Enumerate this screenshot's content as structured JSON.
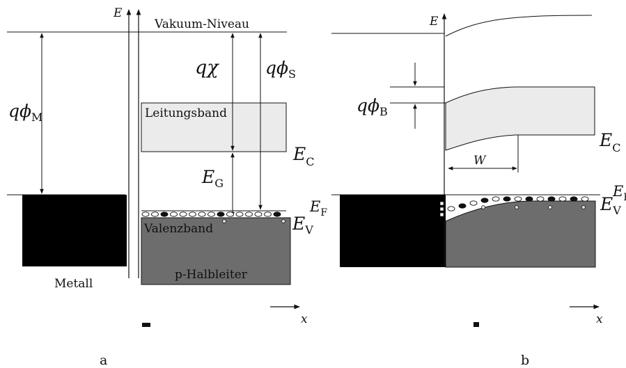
{
  "panel_a": {
    "energy_axis_label": "E",
    "x_axis_label": "x",
    "vacuum_level": "Vakuum-Niveau",
    "work_function_metal": {
      "symbol": "qϕ",
      "sub": "M"
    },
    "electron_affinity": "qχ",
    "work_function_semiconductor": {
      "symbol": "qϕ",
      "sub": "S"
    },
    "conduction_band": "Leitungsband",
    "valence_band": "Valenzband",
    "band_gap": {
      "symbol": "E",
      "sub": "G"
    },
    "conduction_edge": {
      "symbol": "E",
      "sub": "C"
    },
    "fermi_level": {
      "symbol": "E",
      "sub": "F"
    },
    "valence_edge": {
      "symbol": "E",
      "sub": "V"
    },
    "metal_label": "Metall",
    "semiconductor_label": "p-Halbleiter",
    "panel_caption_partial": "a",
    "caption": "a"
  },
  "panel_b": {
    "energy_axis_label": "E",
    "x_axis_label": "x",
    "barrier_height": {
      "symbol": "qϕ",
      "sub": "B"
    },
    "depletion_width": "W",
    "conduction_edge": {
      "symbol": "E",
      "sub": "C"
    },
    "fermi_level": {
      "symbol": "E",
      "sub": "F"
    },
    "valence_edge": {
      "symbol": "E",
      "sub": "V"
    },
    "panel_caption_partial": "b",
    "caption": "b"
  },
  "colors": {
    "metal": "#000000",
    "conduction_band": "#ebebeb",
    "valence_band": "#6d6d6d",
    "lines": "#111111"
  }
}
